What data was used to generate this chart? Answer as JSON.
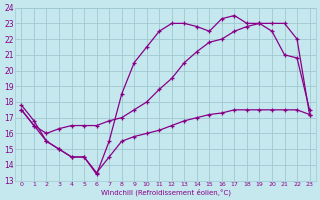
{
  "xlabel": "Windchill (Refroidissement éolien,°C)",
  "xlim": [
    -0.5,
    23.5
  ],
  "ylim": [
    13,
    24
  ],
  "xticks": [
    0,
    1,
    2,
    3,
    4,
    5,
    6,
    7,
    8,
    9,
    10,
    11,
    12,
    13,
    14,
    15,
    16,
    17,
    18,
    19,
    20,
    21,
    22,
    23
  ],
  "yticks": [
    13,
    14,
    15,
    16,
    17,
    18,
    19,
    20,
    21,
    22,
    23,
    24
  ],
  "background_color": "#c5e8ee",
  "grid_color": "#a0c8d0",
  "line_color": "#880088",
  "line1_x": [
    0,
    1,
    2,
    3,
    4,
    5,
    6,
    7,
    8,
    9,
    10,
    11,
    12,
    13,
    14,
    15,
    16,
    17,
    18,
    19,
    20,
    21,
    22,
    23
  ],
  "line1_y": [
    17.8,
    16.8,
    15.5,
    15.0,
    14.5,
    14.5,
    13.4,
    15.5,
    18.5,
    20.5,
    21.5,
    22.5,
    23.0,
    23.0,
    22.8,
    22.5,
    23.3,
    23.5,
    23.0,
    23.0,
    22.5,
    21.0,
    20.8,
    17.5
  ],
  "line2_x": [
    0,
    1,
    2,
    3,
    4,
    5,
    6,
    7,
    8,
    9,
    10,
    11,
    12,
    13,
    14,
    15,
    16,
    17,
    18,
    19,
    20,
    21,
    22,
    23
  ],
  "line2_y": [
    17.5,
    16.5,
    16.0,
    16.3,
    16.5,
    16.5,
    16.5,
    16.8,
    17.0,
    17.5,
    18.0,
    18.8,
    19.5,
    20.5,
    21.2,
    21.8,
    22.0,
    22.5,
    22.8,
    23.0,
    23.0,
    23.0,
    22.0,
    17.2
  ],
  "line3_x": [
    0,
    1,
    2,
    3,
    4,
    5,
    6,
    7,
    8,
    9,
    10,
    11,
    12,
    13,
    14,
    15,
    16,
    17,
    18,
    19,
    20,
    21,
    22,
    23
  ],
  "line3_y": [
    17.5,
    16.5,
    15.5,
    15.0,
    14.5,
    14.5,
    13.5,
    14.5,
    15.5,
    15.8,
    16.0,
    16.2,
    16.5,
    16.8,
    17.0,
    17.2,
    17.3,
    17.5,
    17.5,
    17.5,
    17.5,
    17.5,
    17.5,
    17.2
  ]
}
